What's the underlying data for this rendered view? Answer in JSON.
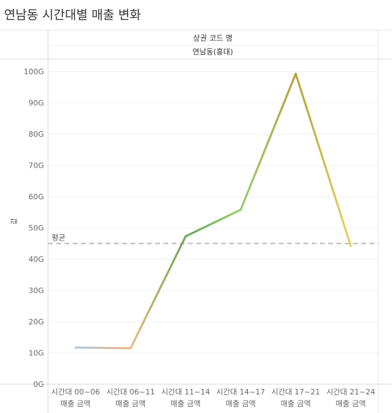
{
  "title": "연남동 시간대별 매출 변화",
  "chart_data": {
    "type": "line",
    "header_title": "상권 코드 명",
    "header_value": "연남동(홍대)",
    "ylabel": "값",
    "ylim": [
      0,
      104
    ],
    "y_ticks": [
      "0G",
      "10G",
      "20G",
      "30G",
      "40G",
      "50G",
      "60G",
      "70G",
      "80G",
      "90G",
      "100G"
    ],
    "categories": [
      [
        "시간대 00~06",
        "매출 금액"
      ],
      [
        "시간대 06~11",
        "매출 금액"
      ],
      [
        "시간대 11~14",
        "매출 금액"
      ],
      [
        "시간대 14~17",
        "매출 금액"
      ],
      [
        "시간대 17~21",
        "매출 금액"
      ],
      [
        "시간대 21~24",
        "매출 금액"
      ]
    ],
    "values": [
      11.7,
      11.5,
      47.3,
      55.8,
      99.3,
      44.2
    ],
    "reference_line": {
      "label": "평균",
      "value": 45.0
    },
    "line_colors": [
      "#a9c9e0",
      "#f0b77a",
      "#6aa85a",
      "#8fcf6e",
      "#b8a23a",
      "#ecd062"
    ],
    "grid": true
  }
}
